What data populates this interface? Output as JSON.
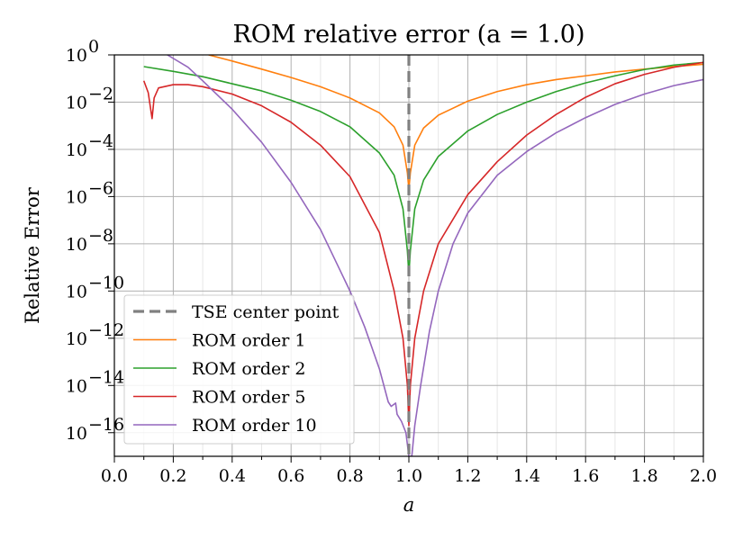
{
  "chart_data": {
    "type": "line",
    "title": "ROM relative error (a = 1.0)",
    "xlabel": "a",
    "ylabel": "Relative Error",
    "xlim": [
      0.0,
      2.0
    ],
    "ylim": [
      1e-17,
      1
    ],
    "yscale": "log",
    "grid": true,
    "legend_position": "lower-left",
    "x_ticks": [
      "0.0",
      "0.2",
      "0.4",
      "0.6",
      "0.8",
      "1.0",
      "1.2",
      "1.4",
      "1.6",
      "1.8",
      "2.0"
    ],
    "y_ticks": [
      {
        "base": "10",
        "exp": "0"
      },
      {
        "base": "10",
        "exp": "−2"
      },
      {
        "base": "10",
        "exp": "−4"
      },
      {
        "base": "10",
        "exp": "−6"
      },
      {
        "base": "10",
        "exp": "−8"
      },
      {
        "base": "10",
        "exp": "−10"
      },
      {
        "base": "10",
        "exp": "−12"
      },
      {
        "base": "10",
        "exp": "−14"
      },
      {
        "base": "10",
        "exp": "−16"
      }
    ],
    "center_line": {
      "name": "TSE center point",
      "x": 1.0,
      "color": "#808080"
    },
    "series": [
      {
        "name": "ROM order 1",
        "color": "#ff7f0e",
        "points": [
          [
            0.32,
            1.0
          ],
          [
            0.4,
            0.55
          ],
          [
            0.5,
            0.25
          ],
          [
            0.6,
            0.11
          ],
          [
            0.7,
            0.045
          ],
          [
            0.8,
            0.015
          ],
          [
            0.9,
            0.0035
          ],
          [
            0.95,
            0.0009
          ],
          [
            0.98,
            0.00015
          ],
          [
            0.995,
            1e-05
          ],
          [
            1.0,
            2e-06
          ],
          [
            1.005,
            1e-05
          ],
          [
            1.02,
            0.00015
          ],
          [
            1.05,
            0.0008
          ],
          [
            1.1,
            0.0028
          ],
          [
            1.2,
            0.011
          ],
          [
            1.3,
            0.028
          ],
          [
            1.4,
            0.055
          ],
          [
            1.5,
            0.09
          ],
          [
            1.6,
            0.13
          ],
          [
            1.7,
            0.19
          ],
          [
            1.8,
            0.25
          ],
          [
            1.9,
            0.32
          ],
          [
            2.0,
            0.4
          ]
        ]
      },
      {
        "name": "ROM order 2",
        "color": "#2ca02c",
        "points": [
          [
            0.1,
            0.32
          ],
          [
            0.2,
            0.2
          ],
          [
            0.3,
            0.12
          ],
          [
            0.4,
            0.06
          ],
          [
            0.5,
            0.03
          ],
          [
            0.6,
            0.012
          ],
          [
            0.7,
            0.004
          ],
          [
            0.8,
            0.0009
          ],
          [
            0.9,
            7e-05
          ],
          [
            0.95,
            8e-06
          ],
          [
            0.98,
            3e-07
          ],
          [
            0.995,
            5e-09
          ],
          [
            1.0,
            5e-10
          ],
          [
            1.005,
            5e-09
          ],
          [
            1.02,
            3e-07
          ],
          [
            1.05,
            5e-06
          ],
          [
            1.1,
            5e-05
          ],
          [
            1.2,
            0.0006
          ],
          [
            1.3,
            0.003
          ],
          [
            1.4,
            0.01
          ],
          [
            1.5,
            0.028
          ],
          [
            1.6,
            0.065
          ],
          [
            1.7,
            0.13
          ],
          [
            1.8,
            0.24
          ],
          [
            1.9,
            0.37
          ],
          [
            2.0,
            0.48
          ]
        ]
      },
      {
        "name": "ROM order 5",
        "color": "#d62728",
        "points": [
          [
            0.1,
            0.08
          ],
          [
            0.115,
            0.025
          ],
          [
            0.128,
            0.002
          ],
          [
            0.135,
            0.015
          ],
          [
            0.15,
            0.04
          ],
          [
            0.2,
            0.055
          ],
          [
            0.25,
            0.055
          ],
          [
            0.3,
            0.045
          ],
          [
            0.4,
            0.022
          ],
          [
            0.5,
            0.007
          ],
          [
            0.6,
            0.0014
          ],
          [
            0.7,
            0.00015
          ],
          [
            0.8,
            7e-06
          ],
          [
            0.9,
            3e-08
          ],
          [
            0.95,
            1e-10
          ],
          [
            0.98,
            1e-12
          ],
          [
            0.995,
            1e-14
          ],
          [
            1.0,
            2e-16
          ],
          [
            1.005,
            1e-14
          ],
          [
            1.02,
            1e-12
          ],
          [
            1.05,
            1e-10
          ],
          [
            1.1,
            1e-08
          ],
          [
            1.2,
            1.2e-06
          ],
          [
            1.3,
            3e-05
          ],
          [
            1.4,
            0.0004
          ],
          [
            1.5,
            0.003
          ],
          [
            1.6,
            0.016
          ],
          [
            1.7,
            0.06
          ],
          [
            1.8,
            0.15
          ],
          [
            1.9,
            0.3
          ],
          [
            2.0,
            0.48
          ]
        ]
      },
      {
        "name": "ROM order 10",
        "color": "#9467bd",
        "points": [
          [
            0.18,
            1.0
          ],
          [
            0.25,
            0.3
          ],
          [
            0.3,
            0.08
          ],
          [
            0.4,
            0.005
          ],
          [
            0.5,
            0.0002
          ],
          [
            0.6,
            4e-06
          ],
          [
            0.7,
            4e-08
          ],
          [
            0.8,
            1e-10
          ],
          [
            0.85,
            3e-12
          ],
          [
            0.9,
            5e-14
          ],
          [
            0.93,
            2e-15
          ],
          [
            0.94,
            1.3e-15
          ],
          [
            0.955,
            1.8e-15
          ],
          [
            0.96,
            6e-16
          ],
          [
            0.975,
            3e-16
          ],
          [
            0.99,
            1e-16
          ],
          [
            1.0,
            1e-17
          ],
          [
            1.01,
            1e-17
          ],
          [
            1.02,
            2e-16
          ],
          [
            1.04,
            1e-14
          ],
          [
            1.07,
            2e-12
          ],
          [
            1.1,
            1e-10
          ],
          [
            1.15,
            1e-08
          ],
          [
            1.2,
            2e-07
          ],
          [
            1.3,
            8e-06
          ],
          [
            1.4,
            8e-05
          ],
          [
            1.5,
            0.0005
          ],
          [
            1.6,
            0.0022
          ],
          [
            1.7,
            0.008
          ],
          [
            1.8,
            0.022
          ],
          [
            1.9,
            0.05
          ],
          [
            2.0,
            0.09
          ]
        ]
      }
    ]
  }
}
